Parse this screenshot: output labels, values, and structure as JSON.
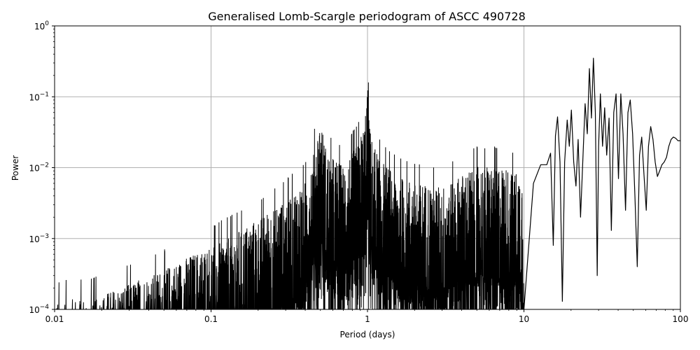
{
  "chart_data": {
    "type": "line",
    "title": "Generalised Lomb-Scargle periodogram of ASCC 490728",
    "xlabel": "Period (days)",
    "ylabel": "Power",
    "x_scale": "log",
    "y_scale": "log",
    "xlim": [
      0.01,
      100
    ],
    "ylim": [
      0.0001,
      1
    ],
    "grid": true,
    "x_ticks": [
      {
        "value": 0.01,
        "label": "0.01"
      },
      {
        "value": 0.1,
        "label": "0.1"
      },
      {
        "value": 1,
        "label": "1"
      },
      {
        "value": 10,
        "label": "10"
      },
      {
        "value": 100,
        "label": "100"
      }
    ],
    "y_ticks": [
      {
        "value": 0.0001,
        "base": "10",
        "exp": "−4"
      },
      {
        "value": 0.001,
        "base": "10",
        "exp": "−3"
      },
      {
        "value": 0.01,
        "base": "10",
        "exp": "−2"
      },
      {
        "value": 0.1,
        "base": "10",
        "exp": "−1"
      },
      {
        "value": 1,
        "base": "10",
        "exp": "0"
      }
    ],
    "series": [
      {
        "color": "#000000",
        "x": [
          10.0,
          11.5,
          12.8,
          14.0,
          14.8,
          15.4,
          15.9,
          16.4,
          17.0,
          17.6,
          18.2,
          18.9,
          19.5,
          20.1,
          20.8,
          21.5,
          22.2,
          23.0,
          23.8,
          24.6,
          25.4,
          26.2,
          27.0,
          27.8,
          28.6,
          29.4,
          30.0,
          30.8,
          31.8,
          32.8,
          33.8,
          35.0,
          36.2,
          37.5,
          38.8,
          40.2,
          41.6,
          43.0,
          44.6,
          46.2,
          47.8,
          49.5,
          51.2,
          53.0,
          54.8,
          56.6,
          58.5,
          60.5,
          62.5,
          64.6,
          66.8,
          69.0,
          71.3,
          73.7,
          76.2,
          78.8,
          81.5,
          84.3,
          87.2,
          90.2,
          93.3,
          96.5,
          100.0
        ],
        "y": [
          0.0001,
          0.006,
          0.011,
          0.011,
          0.016,
          0.0008,
          0.028,
          0.052,
          0.012,
          0.00013,
          0.012,
          0.047,
          0.02,
          0.065,
          0.012,
          0.0055,
          0.025,
          0.002,
          0.013,
          0.08,
          0.03,
          0.25,
          0.05,
          0.35,
          0.06,
          0.0003,
          0.02,
          0.11,
          0.02,
          0.07,
          0.015,
          0.05,
          0.0013,
          0.06,
          0.11,
          0.007,
          0.11,
          0.03,
          0.0025,
          0.06,
          0.09,
          0.03,
          0.004,
          0.0004,
          0.015,
          0.027,
          0.008,
          0.0025,
          0.02,
          0.038,
          0.025,
          0.012,
          0.0075,
          0.009,
          0.011,
          0.012,
          0.014,
          0.02,
          0.025,
          0.027,
          0.026,
          0.024,
          0.024
        ]
      }
    ],
    "noise_envelope": {
      "x": [
        0.01,
        0.02,
        0.05,
        0.1,
        0.2,
        0.3,
        0.4,
        0.45,
        0.5,
        0.55,
        0.7,
        0.85,
        0.95,
        1.0,
        1.05,
        1.2,
        1.5,
        2.0,
        3.0,
        5.0,
        7.0,
        10.0
      ],
      "y": [
        0.00025,
        0.0003,
        0.0007,
        0.0015,
        0.0035,
        0.007,
        0.012,
        0.03,
        0.09,
        0.03,
        0.02,
        0.04,
        0.07,
        0.27,
        0.05,
        0.025,
        0.015,
        0.012,
        0.01,
        0.02,
        0.02,
        0.015
      ]
    }
  }
}
